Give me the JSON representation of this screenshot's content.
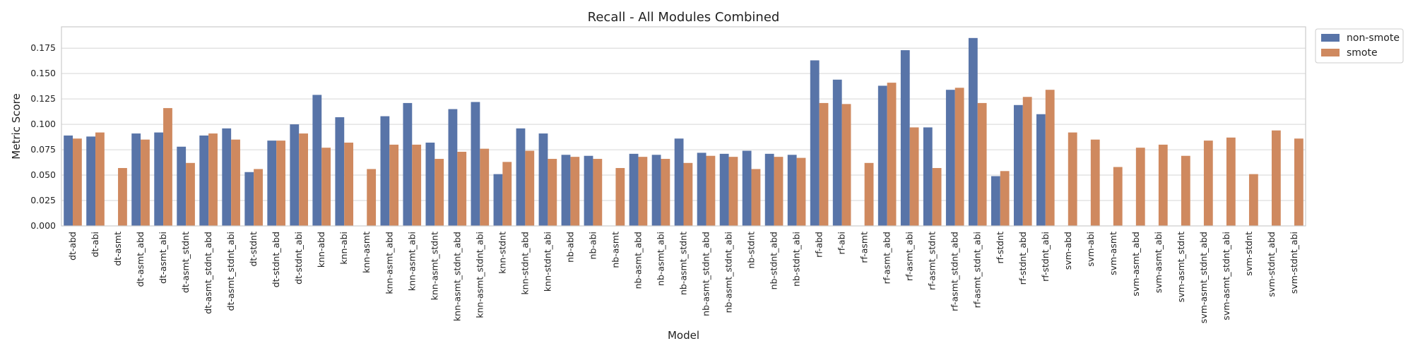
{
  "chart_data": {
    "type": "bar",
    "title": "Recall - All Modules Combined",
    "xlabel": "Model",
    "ylabel": "Metric Score",
    "ylim": [
      0,
      0.196
    ],
    "yticks": [
      "0.000",
      "0.025",
      "0.050",
      "0.075",
      "0.100",
      "0.125",
      "0.150",
      "0.175"
    ],
    "ytick_values": [
      0,
      0.025,
      0.05,
      0.075,
      0.1,
      0.125,
      0.15,
      0.175
    ],
    "grid": true,
    "legend_position": "outside-top-right",
    "categories": [
      "dt-abd",
      "dt-abi",
      "dt-asmt",
      "dt-asmt_abd",
      "dt-asmt_abi",
      "dt-asmt_stdnt",
      "dt-asmt_stdnt_abd",
      "dt-asmt_stdnt_abi",
      "dt-stdnt",
      "dt-stdnt_abd",
      "dt-stdnt_abi",
      "knn-abd",
      "knn-abi",
      "knn-asmt",
      "knn-asmt_abd",
      "knn-asmt_abi",
      "knn-asmt_stdnt",
      "knn-asmt_stdnt_abd",
      "knn-asmt_stdnt_abi",
      "knn-stdnt",
      "knn-stdnt_abd",
      "knn-stdnt_abi",
      "nb-abd",
      "nb-abi",
      "nb-asmt",
      "nb-asmt_abd",
      "nb-asmt_abi",
      "nb-asmt_stdnt",
      "nb-asmt_stdnt_abd",
      "nb-asmt_stdnt_abi",
      "nb-stdnt",
      "nb-stdnt_abd",
      "nb-stdnt_abi",
      "rf-abd",
      "rf-abi",
      "rf-asmt",
      "rf-asmt_abd",
      "rf-asmt_abi",
      "rf-asmt_stdnt",
      "rf-asmt_stdnt_abd",
      "rf-asmt_stdnt_abi",
      "rf-stdnt",
      "rf-stdnt_abd",
      "rf-stdnt_abi",
      "svm-abd",
      "svm-abi",
      "svm-asmt",
      "svm-asmt_abd",
      "svm-asmt_abi",
      "svm-asmt_stdnt",
      "svm-asmt_stdnt_abd",
      "svm-asmt_stdnt_abi",
      "svm-stdnt",
      "svm-stdnt_abd",
      "svm-stdnt_abi"
    ],
    "series": [
      {
        "name": "non-smote",
        "color": "#5874a8",
        "values": [
          0.089,
          0.088,
          null,
          0.091,
          0.092,
          0.078,
          0.089,
          0.096,
          0.053,
          0.084,
          0.1,
          0.129,
          0.107,
          null,
          0.108,
          0.121,
          0.082,
          0.115,
          0.122,
          0.051,
          0.096,
          0.091,
          0.07,
          0.069,
          null,
          0.071,
          0.07,
          0.086,
          0.072,
          0.071,
          0.074,
          0.071,
          0.07,
          0.163,
          0.144,
          null,
          0.138,
          0.173,
          0.097,
          0.134,
          0.185,
          0.049,
          0.119,
          0.11,
          null,
          null,
          null,
          null,
          null,
          null,
          null,
          null,
          null,
          null,
          null
        ]
      },
      {
        "name": "smote",
        "color": "#cf895f",
        "values": [
          0.086,
          0.092,
          0.057,
          0.085,
          0.116,
          0.062,
          0.091,
          0.085,
          0.056,
          0.084,
          0.091,
          0.077,
          0.082,
          0.056,
          0.08,
          0.08,
          0.066,
          0.073,
          0.076,
          0.063,
          0.074,
          0.066,
          0.068,
          0.066,
          0.057,
          0.068,
          0.066,
          0.062,
          0.069,
          0.068,
          0.056,
          0.068,
          0.067,
          0.121,
          0.12,
          0.062,
          0.141,
          0.097,
          0.057,
          0.136,
          0.121,
          0.054,
          0.127,
          0.134,
          0.092,
          0.085,
          0.058,
          0.077,
          0.08,
          0.069,
          0.084,
          0.087,
          0.051,
          0.094,
          0.086
        ]
      }
    ]
  }
}
